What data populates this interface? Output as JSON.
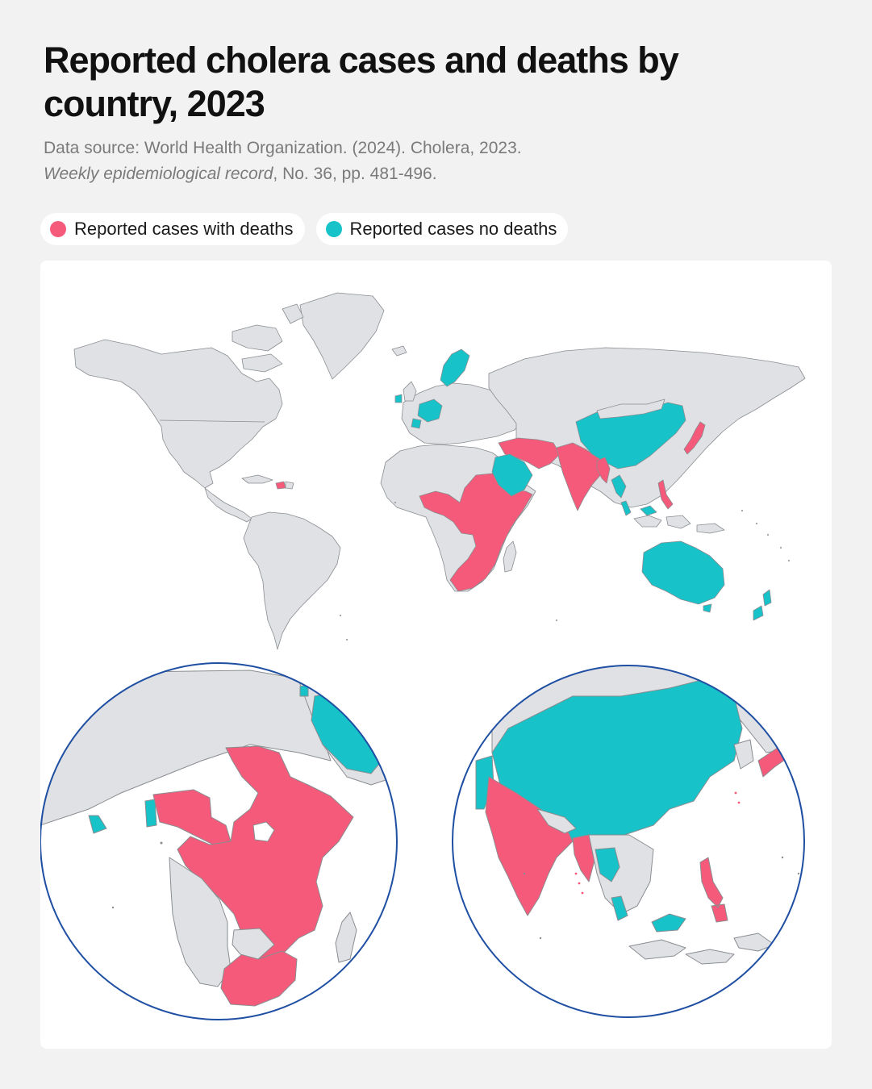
{
  "header": {
    "title": "Reported cholera cases and deaths by country, 2023",
    "source_line": "Data source: World Health Organization. (2024). Cholera, 2023.",
    "citation": "Weekly epidemiological record",
    "citation_rest": ", No. 36, pp. 481-496."
  },
  "legend": [
    {
      "label": "Reported cases with deaths",
      "color": "#f55a7a"
    },
    {
      "label": "Reported cases no deaths",
      "color": "#17c3c8"
    }
  ],
  "map": {
    "land_color": "#dfe1e4",
    "border_color": "#8a8d91",
    "inset_ring_color": "#1f4fa3",
    "insets": [
      "Africa and Middle East",
      "South and East Asia"
    ]
  }
}
